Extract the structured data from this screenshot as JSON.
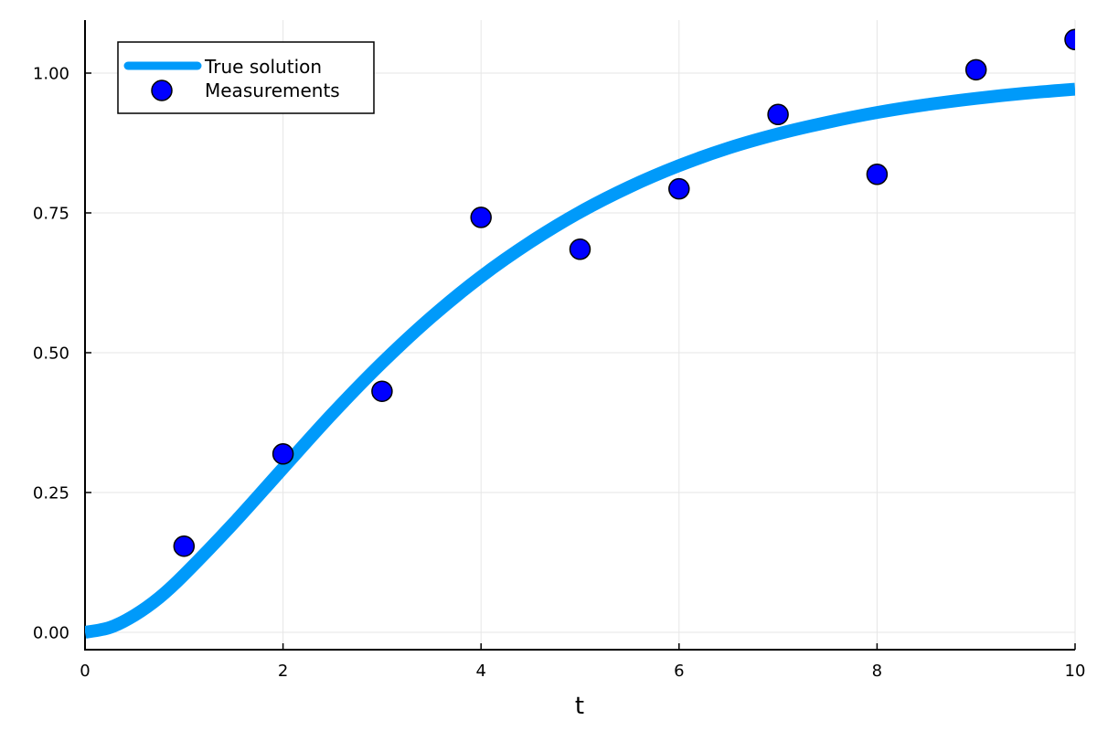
{
  "chart_data": {
    "type": "line",
    "title": "",
    "xlabel": "t",
    "ylabel": "",
    "xlim": [
      0,
      10
    ],
    "ylim": [
      -0.03,
      1.09
    ],
    "grid": true,
    "legend_position": "top-left",
    "x_ticks": [
      0,
      2,
      4,
      6,
      8,
      10
    ],
    "x_tick_labels": [
      "0",
      "2",
      "4",
      "6",
      "8",
      "10"
    ],
    "y_ticks": [
      0.0,
      0.25,
      0.5,
      0.75,
      1.0
    ],
    "y_tick_labels": [
      "0.00",
      "0.25",
      "0.50",
      "0.75",
      "1.00"
    ],
    "series": [
      {
        "name": "True solution",
        "type": "line",
        "color": "#009AFA",
        "line_width": 14,
        "x": [
          0,
          0.25,
          0.5,
          0.75,
          1,
          1.5,
          2,
          2.5,
          3,
          3.5,
          4,
          4.5,
          5,
          5.5,
          6,
          6.5,
          7,
          7.5,
          8,
          8.5,
          9,
          9.5,
          10
        ],
        "values": [
          0,
          0.0085,
          0.0305,
          0.062,
          0.1028,
          0.195,
          0.2935,
          0.3912,
          0.482,
          0.5639,
          0.636,
          0.698,
          0.7515,
          0.7966,
          0.8345,
          0.866,
          0.8913,
          0.912,
          0.9295,
          0.9435,
          0.9548,
          0.964,
          0.9712
        ]
      },
      {
        "name": "Measurements",
        "type": "scatter",
        "color": "#0000FF",
        "marker_edge": "#000000",
        "x": [
          1,
          2,
          3,
          4,
          5,
          6,
          7,
          8,
          9,
          10
        ],
        "values": [
          0.154,
          0.319,
          0.431,
          0.742,
          0.685,
          0.793,
          0.926,
          0.819,
          1.006,
          1.06
        ]
      }
    ]
  },
  "legend": {
    "items": [
      {
        "label": "True solution"
      },
      {
        "label": "Measurements"
      }
    ]
  }
}
